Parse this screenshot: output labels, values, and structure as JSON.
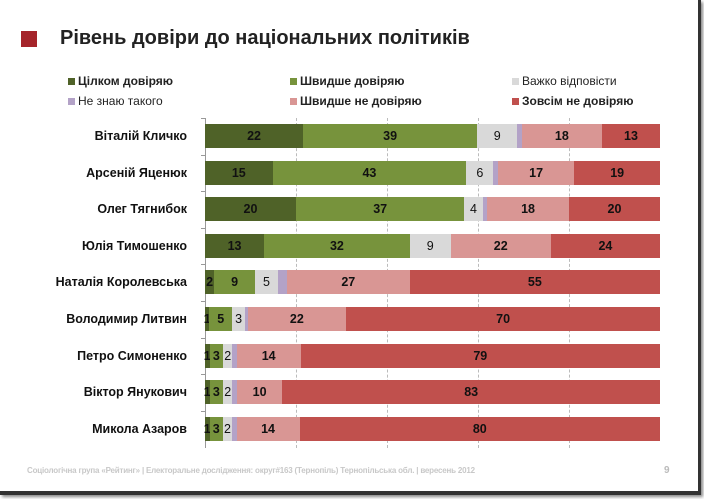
{
  "title": "Рівень довіри до національних політиків",
  "footer": "Соціологічна група «Рейтинг» | Електоральне дослідження: округ#163 (Тернопіль) Тернопільська обл. | вересень 2012",
  "page_number": "9",
  "chart_data": {
    "type": "bar",
    "orientation": "horizontal-stacked-100",
    "title": "Рівень довіри до національних політиків",
    "legend_position": "top",
    "series": [
      {
        "name": "Цілком довіряю",
        "color": "#4f6228",
        "values": [
          22,
          15,
          20,
          13,
          2,
          1,
          1,
          1,
          1
        ]
      },
      {
        "name": "Швидше довіряю",
        "color": "#77933c",
        "values": [
          39,
          43,
          37,
          32,
          9,
          5,
          3,
          3,
          3
        ]
      },
      {
        "name": "Важко відповісти",
        "color": "#d9d9d9",
        "values": [
          9,
          6,
          4,
          9,
          5,
          3,
          2,
          2,
          2
        ]
      },
      {
        "name": "Не знаю такого",
        "color": "#b3a2c7",
        "values": [
          1,
          1,
          1,
          0,
          2,
          0.5,
          1,
          1,
          1
        ]
      },
      {
        "name": "Швидше не довіряю",
        "color": "#d99694",
        "values": [
          18,
          17,
          18,
          22,
          27,
          22,
          14,
          10,
          14
        ]
      },
      {
        "name": "Зовсім не довіряю",
        "color": "#c0504d",
        "values": [
          13,
          19,
          20,
          24,
          55,
          70,
          79,
          83,
          80
        ]
      }
    ],
    "categories": [
      "Віталій Кличко",
      "Арсеній Яценюк",
      "Олег Тягнибок",
      "Юлія Тимошенко",
      "Наталія Королевська",
      "Володимир Литвин",
      "Петро Симоненко",
      "Віктор Янукович",
      "Микола Азаров"
    ],
    "labeled_series": [
      0,
      1,
      2,
      4,
      5
    ],
    "bold_series": [
      0,
      1,
      4,
      5
    ],
    "xlim": [
      0,
      100
    ],
    "grid": true
  }
}
